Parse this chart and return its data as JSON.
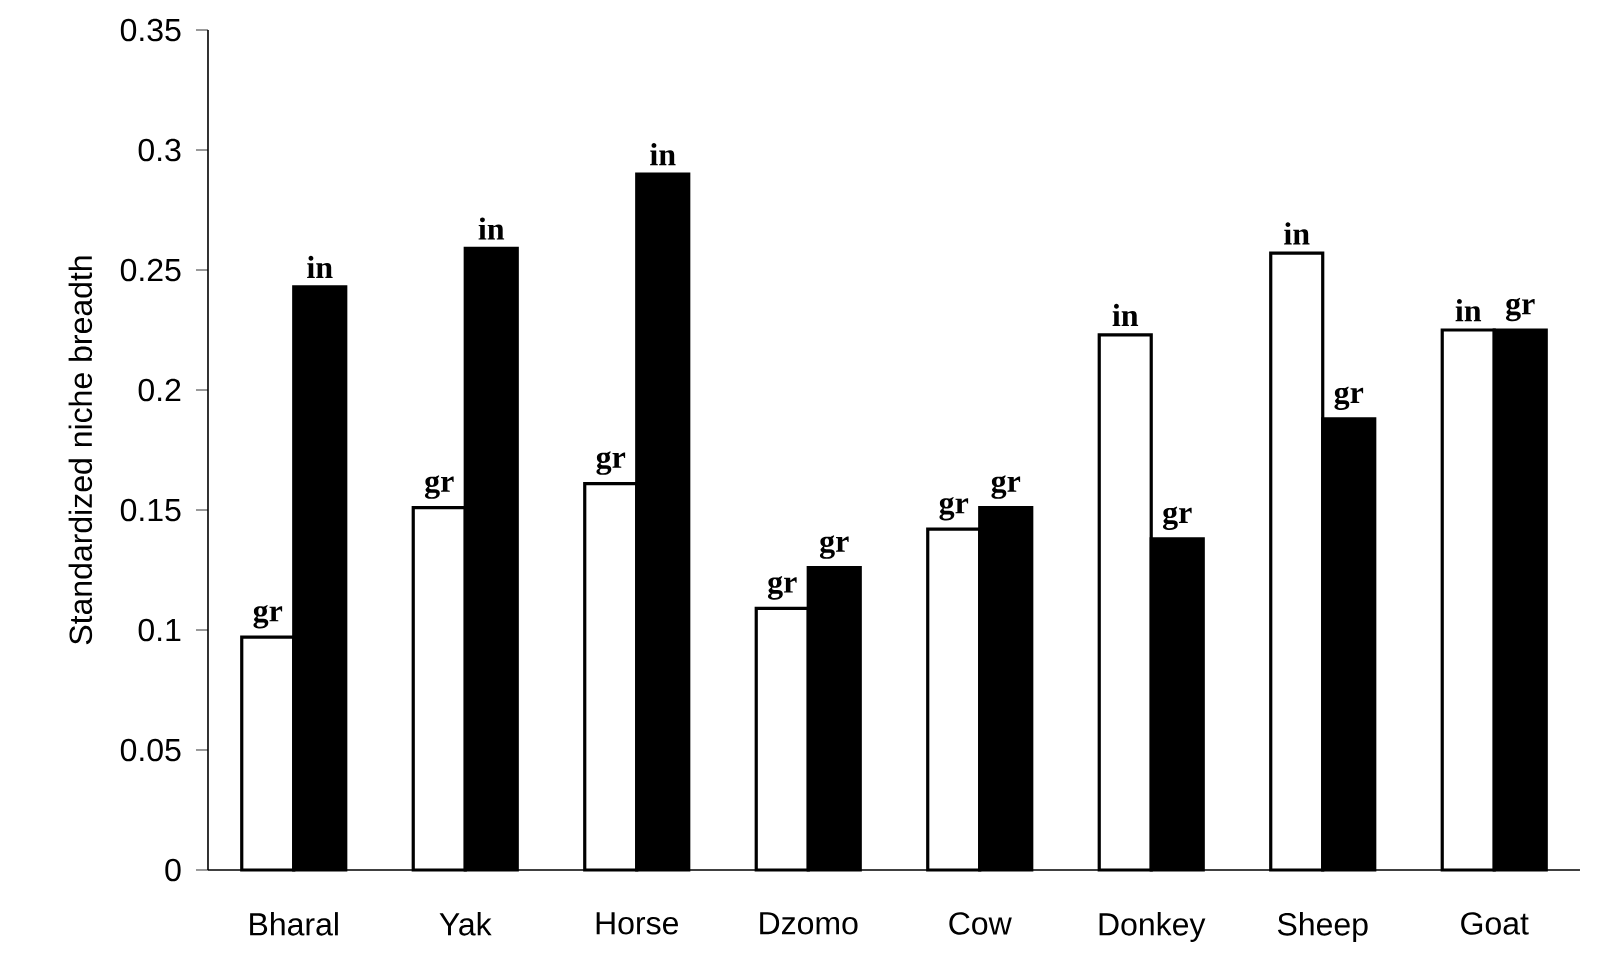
{
  "chart_data": {
    "type": "bar",
    "ylabel": "Standardized niche breadth",
    "categories": [
      "Bharal",
      "Yak",
      "Horse",
      "Dzomo",
      "Cow",
      "Donkey",
      "Sheep",
      "Goat"
    ],
    "series": [
      {
        "color": "#ffffff",
        "values": [
          0.097,
          0.151,
          0.161,
          0.109,
          0.142,
          0.223,
          0.257,
          0.225
        ],
        "value_labels": [
          "gr",
          "gr",
          "gr",
          "gr",
          "gr",
          "in",
          "in",
          "in"
        ]
      },
      {
        "color": "#000000",
        "values": [
          0.243,
          0.259,
          0.29,
          0.126,
          0.151,
          0.138,
          0.188,
          0.225
        ],
        "value_labels": [
          "in",
          "in",
          "in",
          "gr",
          "gr",
          "gr",
          "gr",
          "gr"
        ]
      }
    ],
    "ylim": [
      0,
      0.35
    ],
    "yticks": [
      0,
      0.05,
      0.1,
      0.15,
      0.2,
      0.25,
      0.3,
      0.35
    ]
  }
}
